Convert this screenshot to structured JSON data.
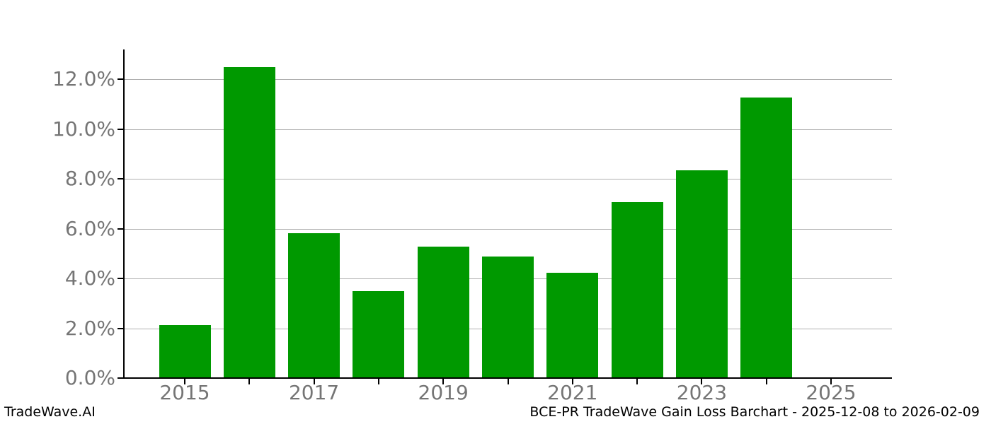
{
  "chart_data": {
    "type": "bar",
    "title": "",
    "xlabel": "",
    "ylabel": "",
    "categories": [
      "2015",
      "2016",
      "2017",
      "2018",
      "2019",
      "2020",
      "2021",
      "2022",
      "2023",
      "2024",
      "2025"
    ],
    "values": [
      2.12,
      12.5,
      5.83,
      3.5,
      5.27,
      4.88,
      4.23,
      7.08,
      8.35,
      11.28,
      0.0
    ],
    "unit": "percent",
    "ylim": [
      0,
      13.2
    ],
    "ytick_values": [
      0,
      2,
      4,
      6,
      8,
      10,
      12
    ],
    "ytick_labels": [
      "0.0%",
      "2.0%",
      "4.0%",
      "6.0%",
      "8.0%",
      "10.0%",
      "12.0%"
    ],
    "xtick_shown_indices": [
      0,
      2,
      4,
      6,
      8,
      10
    ],
    "grid": true,
    "legend": false,
    "bar_color": "#009900",
    "grid_color": "#b0b0b0",
    "axis_color": "#000000",
    "tick_label_color": "#757575",
    "background_color": "#ffffff"
  },
  "footer": {
    "left_text": "TradeWave.AI",
    "right_text": "BCE-PR TradeWave Gain Loss Barchart - 2025-12-08 to 2026-02-09"
  }
}
